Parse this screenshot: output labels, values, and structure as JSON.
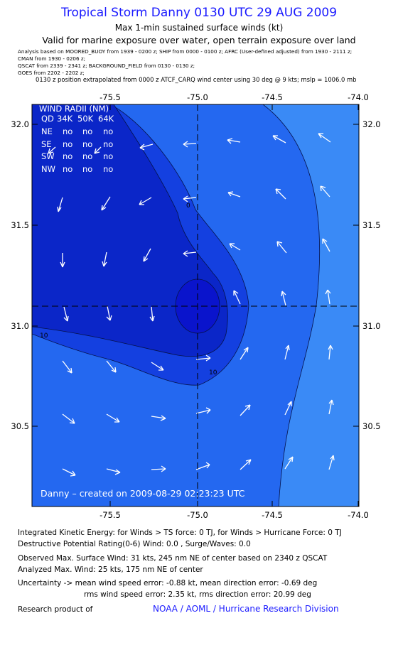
{
  "header": {
    "title": "Tropical Storm Danny 0130 UTC 29 AUG 2009",
    "subtitle1": "Max 1-min sustained surface winds (kt)",
    "subtitle2": "Valid for marine exposure over water, open terrain exposure over land"
  },
  "analysis_meta": [
    "Analysis based on   MOORED_BUOY from 1939 - 0200 z;  SHIP from 0000 - 0100 z;  AFRC (User-defined adjusted) from 1930 - 2111 z;",
    "CMAN from 1930 - 0206 z;",
    "QSCAT from 2339 - 2341 z;  BACKGROUND_FIELD from 0130 - 0130 z;",
    "GOES from 2202 - 2202 z;",
    "0130 z position extrapolated from 0000 z ATCF_CARQ wind center using 30 deg @ 9 kts;  mslp = 1006.0 mb"
  ],
  "map": {
    "x_ticks": [
      "-75.5",
      "-75.0",
      "-74.5",
      "-74.0"
    ],
    "y_ticks": [
      "32.0",
      "31.5",
      "31.0",
      "30.5"
    ],
    "center_lon": "-75.0",
    "center_lat": "31.1",
    "contour_labels": [
      "0",
      "10",
      "10"
    ],
    "colors": {
      "band_0_10": "#0b26c8",
      "band_10_20": "#1440e0",
      "band_20_30": "#2468f0",
      "band_30_40": "#3a8af6",
      "center": "#0a14cc",
      "text": "#ffffff"
    },
    "wind_radii": {
      "title": "WIND RADII (NM)",
      "header": [
        "QD",
        "34K",
        "50K",
        "64K"
      ],
      "rows": [
        [
          "NE",
          "no",
          "no",
          "no"
        ],
        [
          "SE",
          "no",
          "no",
          "no"
        ],
        [
          "SW",
          "no",
          "no",
          "no"
        ],
        [
          "NW",
          "no",
          "no",
          "no"
        ]
      ]
    },
    "created_label": "Danny – created on 2009-08-29 02:23:23 UTC"
  },
  "footer": {
    "line1": "Integrated Kinetic Energy:  for Winds > TS force: 0 TJ,  for Winds > Hurricane Force: 0 TJ",
    "line2": "Destructive Potential Rating(0-6)   Wind: 0.0 , Surge/Waves: 0.0",
    "line3": "Observed Max. Surface Wind: 31 kts, 245 nm NE of center based on 2340 z QSCAT",
    "line4": "Analyzed Max. Wind: 25 kts, 175 nm NE of center",
    "line5": "Uncertainty -> mean wind speed error:  -0.88 kt,   mean direction error:  -0.69 deg",
    "line6": "rms wind speed error: 2.35 kt,   rms direction error: 20.99 deg",
    "credit_prefix": "Research product of",
    "credit_org": "NOAA / AOML / Hurricane Research Division"
  }
}
